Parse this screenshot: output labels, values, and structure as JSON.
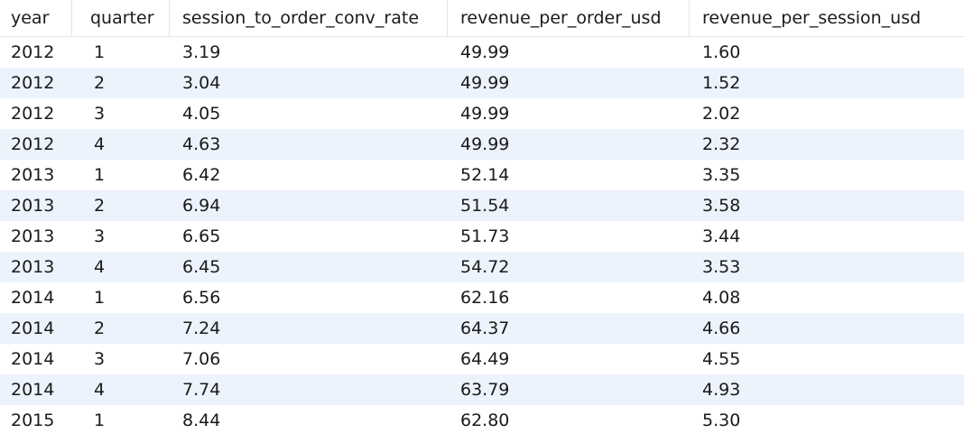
{
  "table": {
    "columns": [
      "year",
      "quarter",
      "session_to_order_conv_rate",
      "revenue_per_order_usd",
      "revenue_per_session_usd"
    ],
    "rows": [
      [
        "2012",
        "1",
        "3.19",
        "49.99",
        "1.60"
      ],
      [
        "2012",
        "2",
        "3.04",
        "49.99",
        "1.52"
      ],
      [
        "2012",
        "3",
        "4.05",
        "49.99",
        "2.02"
      ],
      [
        "2012",
        "4",
        "4.63",
        "49.99",
        "2.32"
      ],
      [
        "2013",
        "1",
        "6.42",
        "52.14",
        "3.35"
      ],
      [
        "2013",
        "2",
        "6.94",
        "51.54",
        "3.58"
      ],
      [
        "2013",
        "3",
        "6.65",
        "51.73",
        "3.44"
      ],
      [
        "2013",
        "4",
        "6.45",
        "54.72",
        "3.53"
      ],
      [
        "2014",
        "1",
        "6.56",
        "62.16",
        "4.08"
      ],
      [
        "2014",
        "2",
        "7.24",
        "64.37",
        "4.66"
      ],
      [
        "2014",
        "3",
        "7.06",
        "64.49",
        "4.55"
      ],
      [
        "2014",
        "4",
        "7.74",
        "63.79",
        "4.93"
      ],
      [
        "2015",
        "1",
        "8.44",
        "62.80",
        "5.30"
      ]
    ]
  },
  "colors": {
    "alt_row": "#ecf3fc",
    "header_border": "#e3e3e3"
  }
}
